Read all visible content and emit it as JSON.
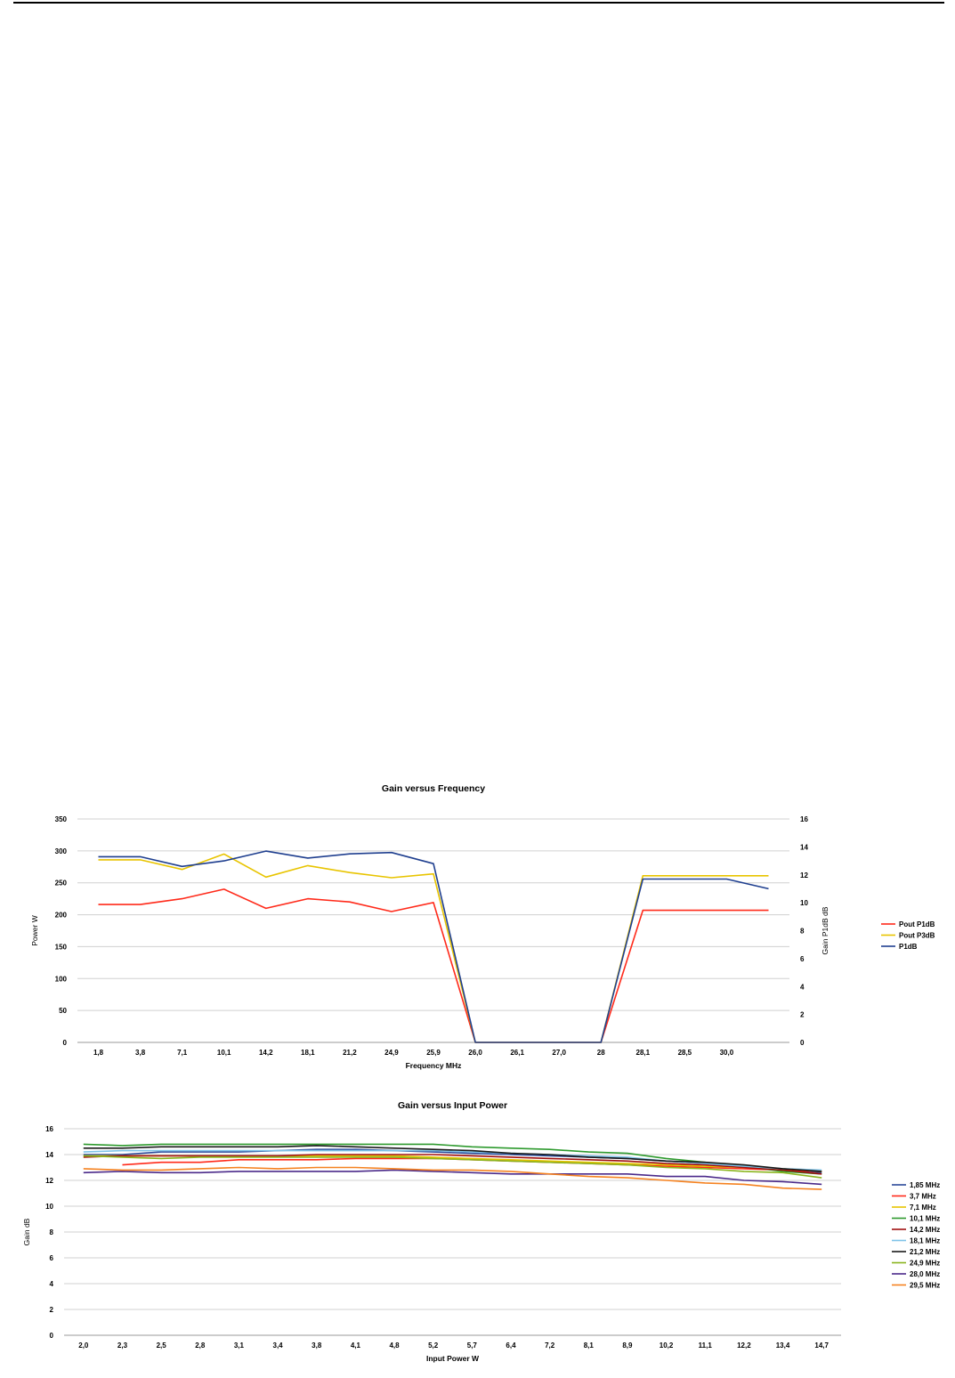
{
  "chart_data": [
    {
      "type": "line",
      "title": "Gain versus Frequency",
      "xlabel": "Frequency MHz",
      "ylabel": "Power W",
      "y2label": "Gain P1dB dB",
      "categories": [
        "1,8",
        "3,8",
        "7,1",
        "10,1",
        "14,2",
        "18,1",
        "21,2",
        "24,9",
        "25,9",
        "26,0",
        "26,1",
        "27,0",
        "28",
        "28,1",
        "28,5",
        "30,0",
        ""
      ],
      "ylim": [
        0,
        350
      ],
      "yticks": [
        0,
        50,
        100,
        150,
        200,
        250,
        300,
        350
      ],
      "y2lim": [
        0,
        16
      ],
      "y2ticks": [
        0,
        2,
        4,
        6,
        8,
        10,
        12,
        14,
        16
      ],
      "grid": true,
      "legend_position": "right",
      "series": [
        {
          "name": "Pout P1dB",
          "color": "#ff2a1a",
          "axis": "left",
          "values": [
            216,
            216,
            225,
            240,
            210,
            225,
            220,
            205,
            219,
            0,
            0,
            0,
            0,
            207,
            207,
            207,
            207
          ]
        },
        {
          "name": "Pout P3dB",
          "color": "#e8c400",
          "axis": "left",
          "values": [
            286,
            286,
            271,
            295,
            259,
            277,
            266,
            258,
            264,
            0,
            0,
            0,
            0,
            261,
            261,
            261,
            261
          ]
        },
        {
          "name": "P1dB",
          "color": "#1f3f8f",
          "axis": "right",
          "values": [
            13.3,
            13.3,
            12.6,
            13.0,
            13.7,
            13.2,
            13.5,
            13.6,
            12.8,
            0,
            0,
            0,
            0,
            11.7,
            11.7,
            11.7,
            11.0
          ]
        }
      ]
    },
    {
      "type": "line",
      "title": "Gain versus Input Power",
      "xlabel": "Input Power W",
      "ylabel": "Gain dB",
      "categories": [
        "2,0",
        "2,3",
        "2,5",
        "2,8",
        "3,1",
        "3,4",
        "3,8",
        "4,1",
        "4,8",
        "5,2",
        "5,7",
        "6,4",
        "7,2",
        "8,1",
        "8,9",
        "10,2",
        "11,1",
        "12,2",
        "13,4",
        "14,7"
      ],
      "ylim": [
        0,
        16
      ],
      "yticks": [
        0,
        2,
        4,
        6,
        8,
        10,
        12,
        14,
        16
      ],
      "grid": true,
      "legend_position": "right",
      "series": [
        {
          "name": "1,85 MHz",
          "color": "#2c4a9a",
          "values": [
            14.0,
            14.0,
            14.2,
            14.2,
            14.2,
            14.3,
            14.4,
            14.4,
            14.3,
            14.2,
            14.1,
            14.0,
            13.9,
            13.8,
            13.7,
            13.5,
            13.3,
            13.1,
            12.9,
            12.6
          ]
        },
        {
          "name": "3,7 MHz",
          "color": "#ff2a1a",
          "values": [
            null,
            13.2,
            13.4,
            13.4,
            13.6,
            13.6,
            13.6,
            13.7,
            13.7,
            13.7,
            13.6,
            13.5,
            13.4,
            13.3,
            13.2,
            13.1,
            13.0,
            12.9,
            12.8,
            12.7
          ]
        },
        {
          "name": "7,1 MHz",
          "color": "#e8c400",
          "values": [
            13.9,
            13.9,
            13.9,
            13.9,
            13.9,
            13.9,
            13.9,
            13.9,
            13.9,
            13.8,
            13.7,
            13.6,
            13.5,
            13.4,
            13.3,
            13.2,
            13.1,
            13.0,
            12.9,
            12.7
          ]
        },
        {
          "name": "10,1 MHz",
          "color": "#2e9a2e",
          "values": [
            14.8,
            14.7,
            14.8,
            14.8,
            14.8,
            14.8,
            14.8,
            14.8,
            14.8,
            14.8,
            14.6,
            14.5,
            14.4,
            14.2,
            14.1,
            13.7,
            13.4,
            13.1,
            12.7,
            12.5
          ]
        },
        {
          "name": "14,2 MHz",
          "color": "#a01010",
          "values": [
            13.8,
            13.9,
            13.9,
            13.9,
            13.9,
            13.9,
            14.0,
            14.0,
            14.0,
            14.0,
            13.9,
            13.8,
            13.7,
            13.6,
            13.5,
            13.3,
            13.2,
            13.0,
            12.8,
            12.5
          ]
        },
        {
          "name": "18,1 MHz",
          "color": "#7fc3e8",
          "values": [
            14.2,
            14.3,
            14.3,
            14.3,
            14.3,
            14.3,
            14.3,
            14.3,
            14.3,
            14.3,
            14.2,
            14.1,
            14.0,
            13.9,
            13.8,
            13.5,
            13.3,
            13.1,
            12.9,
            12.8
          ]
        },
        {
          "name": "21,2 MHz",
          "color": "#1a1a1a",
          "values": [
            14.5,
            14.5,
            14.6,
            14.6,
            14.6,
            14.6,
            14.7,
            14.6,
            14.5,
            14.4,
            14.3,
            14.1,
            14.0,
            13.8,
            13.7,
            13.5,
            13.4,
            13.2,
            12.9,
            12.7
          ]
        },
        {
          "name": "24,9 MHz",
          "color": "#8ab51e",
          "values": [
            13.9,
            13.8,
            13.7,
            13.8,
            13.8,
            13.8,
            13.8,
            13.8,
            13.8,
            13.7,
            13.6,
            13.5,
            13.4,
            13.3,
            13.2,
            13.0,
            12.9,
            12.7,
            12.6,
            12.2
          ]
        },
        {
          "name": "28,0 MHz",
          "color": "#4b2a8a",
          "values": [
            12.6,
            12.7,
            12.6,
            12.6,
            12.7,
            12.7,
            12.7,
            12.7,
            12.8,
            12.7,
            12.6,
            12.5,
            12.5,
            12.5,
            12.5,
            12.3,
            12.3,
            12.0,
            11.9,
            11.7
          ]
        },
        {
          "name": "29,5 MHz",
          "color": "#f58220",
          "values": [
            12.9,
            12.8,
            12.8,
            12.9,
            13.0,
            12.9,
            13.0,
            13.0,
            12.9,
            12.8,
            12.8,
            12.7,
            12.5,
            12.3,
            12.2,
            12.0,
            11.8,
            11.7,
            11.4,
            11.3
          ]
        }
      ]
    }
  ]
}
